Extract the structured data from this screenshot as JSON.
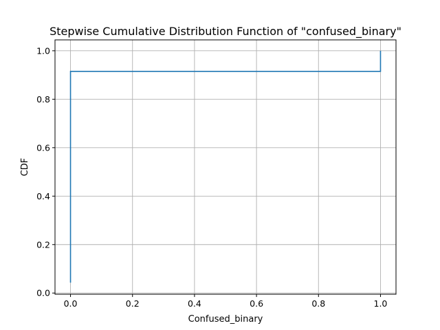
{
  "chart_data": {
    "type": "line",
    "drawstyle": "steps-post",
    "title": "Stepwise Cumulative Distribution Function of \"confused_binary\"",
    "xlabel": "Confused_binary",
    "ylabel": "CDF",
    "xlim": [
      -0.05,
      1.05
    ],
    "ylim": [
      -0.005,
      1.045
    ],
    "grid": true,
    "xticks": [
      0.0,
      0.2,
      0.4,
      0.6,
      0.8,
      1.0
    ],
    "xtick_labels": [
      "0.0",
      "0.2",
      "0.4",
      "0.6",
      "0.8",
      "1.0"
    ],
    "yticks": [
      0.0,
      0.2,
      0.4,
      0.6,
      0.8,
      1.0
    ],
    "ytick_labels": [
      "0.0",
      "0.2",
      "0.4",
      "0.6",
      "0.8",
      "1.0"
    ],
    "series": [
      {
        "color": "#1f77b4",
        "x": [
          0.0,
          0.0,
          1.0,
          1.0
        ],
        "y": [
          0.043,
          0.915,
          0.915,
          1.0
        ]
      }
    ]
  }
}
